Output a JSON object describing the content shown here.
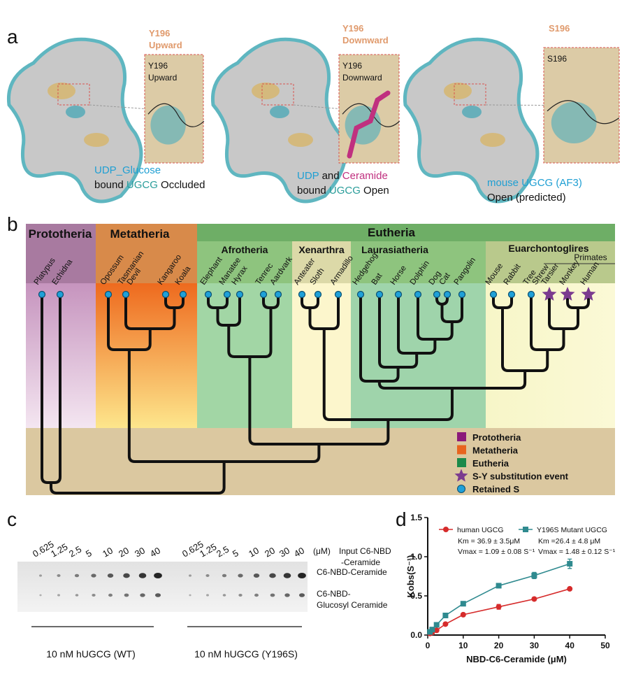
{
  "panel_labels": [
    "a",
    "b",
    "c",
    "d"
  ],
  "structures": [
    {
      "top_label": [
        "Y196",
        "Upward"
      ],
      "inset_label": [
        "Y196",
        "Upward"
      ],
      "caption": [
        [
          {
            "text": "UDP_Glucose",
            "color": "#1f9fd3"
          }
        ],
        [
          {
            "text": "bound ",
            "color": "#111111"
          },
          {
            "text": "UGCG",
            "color": "#2a9d9a"
          },
          {
            "text": " Occluded",
            "color": "#111111"
          }
        ]
      ]
    },
    {
      "top_label": [
        "Y196",
        "Downward"
      ],
      "inset_label": [
        "Y196",
        "Downward"
      ],
      "caption": [
        [
          {
            "text": "UDP",
            "color": "#1f9fd3"
          },
          {
            "text": " and ",
            "color": "#111111"
          },
          {
            "text": "Ceramide",
            "color": "#c0307f"
          }
        ],
        [
          {
            "text": "bound ",
            "color": "#111111"
          },
          {
            "text": "UGCG",
            "color": "#2a9d9a"
          },
          {
            "text": " Open",
            "color": "#111111"
          }
        ]
      ]
    },
    {
      "top_label": [
        "S196"
      ],
      "inset_label": [
        "S196"
      ],
      "caption": [
        [
          {
            "text": "mouse UGCG (AF3)",
            "color": "#1f9fd3"
          }
        ],
        [
          {
            "text": "Open (predicted)",
            "color": "#111111"
          }
        ]
      ]
    }
  ],
  "tree": {
    "groups": [
      "Prototheria",
      "Metatheria",
      "Eutheria",
      "Afrotheria",
      "Xenarthra",
      "Laurasiatheria",
      "Euarchontoglires"
    ],
    "primates_label": "Primates",
    "species": [
      {
        "lines": [
          "Platypus"
        ],
        "marker": "circle"
      },
      {
        "lines": [
          "Echidna"
        ],
        "marker": "circle"
      },
      {
        "lines": [
          "Opossum"
        ],
        "marker": "circle"
      },
      {
        "lines": [
          "Tasmanian",
          "Devil"
        ],
        "marker": "circle"
      },
      {
        "lines": [
          "Kangaroo"
        ],
        "marker": "circle"
      },
      {
        "lines": [
          "Koala"
        ],
        "marker": "circle"
      },
      {
        "lines": [
          "Elephant"
        ],
        "marker": "circle"
      },
      {
        "lines": [
          "Manatee"
        ],
        "marker": "circle"
      },
      {
        "lines": [
          "Hyrax"
        ],
        "marker": "circle"
      },
      {
        "lines": [
          "Tenrec"
        ],
        "marker": "circle"
      },
      {
        "lines": [
          "Aardvark"
        ],
        "marker": "circle"
      },
      {
        "lines": [
          "Anteater"
        ],
        "marker": "circle"
      },
      {
        "lines": [
          "Sloth"
        ],
        "marker": "circle"
      },
      {
        "lines": [
          "Armadillo"
        ],
        "marker": "circle"
      },
      {
        "lines": [
          "Hedgehog"
        ],
        "marker": "circle"
      },
      {
        "lines": [
          "Bat"
        ],
        "marker": "circle"
      },
      {
        "lines": [
          "Horse"
        ],
        "marker": "circle"
      },
      {
        "lines": [
          "Dolphin"
        ],
        "marker": "circle"
      },
      {
        "lines": [
          "Dog"
        ],
        "marker": "circle"
      },
      {
        "lines": [
          "Cat"
        ],
        "marker": "circle"
      },
      {
        "lines": [
          "Pangolin"
        ],
        "marker": "circle"
      },
      {
        "lines": [
          "Mouse"
        ],
        "marker": "circle"
      },
      {
        "lines": [
          "Rabbit"
        ],
        "marker": "circle"
      },
      {
        "lines": [
          "Tree",
          "Shrew"
        ],
        "marker": "circle"
      },
      {
        "lines": [
          "Tarsier"
        ],
        "marker": "star"
      },
      {
        "lines": [
          "Monkey"
        ],
        "marker": "star"
      },
      {
        "lines": [
          "Human"
        ],
        "marker": "star"
      }
    ],
    "legend": [
      {
        "label": "Prototheria",
        "symbol": "square",
        "color": "#8b1a7a"
      },
      {
        "label": "Metatheria",
        "symbol": "square",
        "color": "#e8641e"
      },
      {
        "label": "Eutheria",
        "symbol": "square",
        "color": "#1b8a4a"
      },
      {
        "label": "S-Y substitution event",
        "symbol": "star",
        "color": "#7b3b8f"
      },
      {
        "label": "Retained S",
        "symbol": "circle",
        "color": "#1fa0d8"
      }
    ]
  },
  "gel": {
    "lanes": [
      {
        "concentrations": [
          0.625,
          1.25,
          2.5,
          5,
          10,
          20,
          30,
          40
        ],
        "caption": "10 nM hUGCG (WT)"
      },
      {
        "concentrations": [
          0.625,
          1.25,
          2.5,
          5,
          10,
          20,
          30,
          40
        ],
        "caption": "10 nM hUGCG (Y196S)"
      }
    ],
    "unit": "(μM)",
    "input_label": [
      "Input C6-NBD",
      "-Ceramide"
    ],
    "upper_band": "C6-NBD-Ceramide",
    "lower_band": [
      "C6-NBD-",
      "Glucosyl Ceramide"
    ]
  },
  "chart_data": {
    "type": "scatter",
    "xlabel": "NBD-C6-Ceramide (μM)",
    "ylabel": "Kobs(S⁻¹)",
    "xlim": [
      0,
      50
    ],
    "xticks": [
      0,
      10,
      20,
      30,
      40,
      50
    ],
    "ylim": [
      0,
      1.5
    ],
    "yticks": [
      {
        "value": 0,
        "label": "0.0"
      },
      0.5,
      {
        "value": 1,
        "label": "1.0"
      },
      1.5
    ],
    "x": [
      0.625,
      1.25,
      2.5,
      5,
      10,
      20,
      30,
      40
    ],
    "series": [
      {
        "name": "human UGCG",
        "color": "#d62b2b",
        "marker": "circle",
        "values": [
          0.02,
          0.03,
          0.06,
          0.14,
          0.26,
          0.36,
          0.46,
          0.59
        ],
        "errors": [
          0,
          0,
          0,
          0.01,
          0.01,
          0.03,
          0.02,
          0.01
        ],
        "annotation": [
          "Km = 36.9 ± 3.5μM",
          "Vmax = 1.09 ± 0.08 S⁻¹"
        ]
      },
      {
        "name": "Y196S Mutant UGCG",
        "color": "#2f8a8f",
        "marker": "square",
        "values": [
          0.04,
          0.07,
          0.13,
          0.25,
          0.4,
          0.63,
          0.76,
          0.91
        ],
        "errors": [
          0,
          0.01,
          0.01,
          0.02,
          0.02,
          0.02,
          0.04,
          0.06
        ],
        "annotation": [
          "Km =26.4 ± 4.8 μM",
          "Vmax = 1.48 ± 0.12 S⁻¹"
        ]
      }
    ]
  }
}
